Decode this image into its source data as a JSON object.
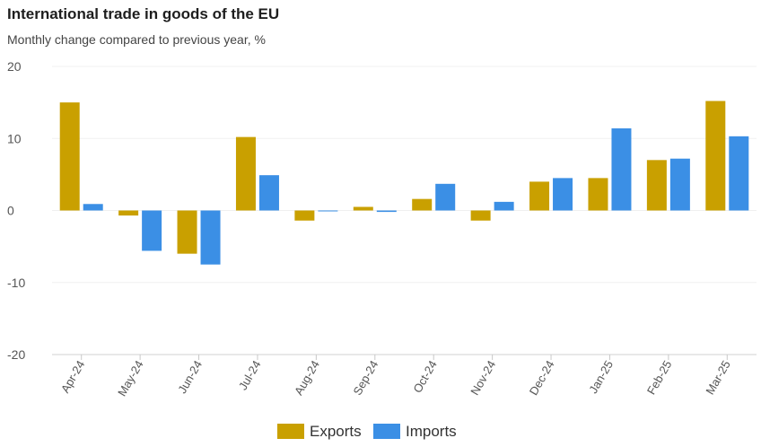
{
  "chart_data": {
    "type": "bar",
    "title": "International trade in goods of the EU",
    "subtitle": "Monthly change compared to previous year, %",
    "xlabel": "",
    "ylabel": "",
    "categories": [
      "Apr-24",
      "May-24",
      "Jun-24",
      "Jul-24",
      "Aug-24",
      "Sep-24",
      "Oct-24",
      "Nov-24",
      "Dec-24",
      "Jan-25",
      "Feb-25",
      "Mar-25"
    ],
    "series": [
      {
        "name": "Exports",
        "color": "#c9a000",
        "values": [
          15.0,
          -0.7,
          -6.0,
          10.2,
          -1.4,
          0.5,
          1.6,
          -1.4,
          4.0,
          4.5,
          7.0,
          15.2
        ]
      },
      {
        "name": "Imports",
        "color": "#3b8fe5",
        "values": [
          0.9,
          -5.6,
          -7.5,
          4.9,
          -0.1,
          -0.2,
          3.7,
          1.2,
          4.5,
          11.4,
          7.2,
          10.3
        ]
      }
    ],
    "ylim": [
      -20,
      20
    ],
    "yticks": [
      20,
      10,
      0,
      -10,
      -20
    ],
    "grid": true,
    "legend": "bottom-center"
  }
}
